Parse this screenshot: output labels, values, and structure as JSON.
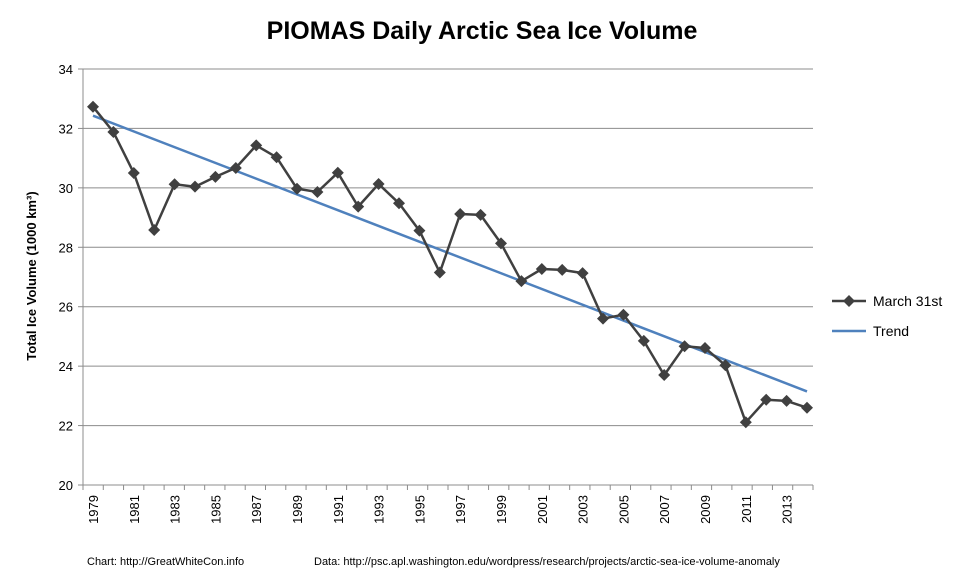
{
  "chart_data": {
    "type": "line",
    "title": "PIOMAS Daily Arctic Sea Ice Volume",
    "ylabel": "Total Ice Volume (1000 km³)",
    "xlabel": "",
    "ylim": [
      20,
      34
    ],
    "y_ticks": [
      "20",
      "22",
      "24",
      "26",
      "28",
      "30",
      "32",
      "34"
    ],
    "x_ticks": [
      "1979",
      "1981",
      "1983",
      "1985",
      "1987",
      "1989",
      "1991",
      "1993",
      "1995",
      "1997",
      "1999",
      "2001",
      "2003",
      "2005",
      "2007",
      "2009",
      "2011",
      "2013"
    ],
    "grid": "horizontal",
    "legend_position": "right",
    "x": [
      1979,
      1980,
      1981,
      1982,
      1983,
      1984,
      1985,
      1986,
      1987,
      1988,
      1989,
      1990,
      1991,
      1992,
      1993,
      1994,
      1995,
      1996,
      1997,
      1998,
      1999,
      2000,
      2001,
      2002,
      2003,
      2004,
      2005,
      2006,
      2007,
      2008,
      2009,
      2010,
      2011,
      2012,
      2013,
      2014
    ],
    "series": [
      {
        "name": "March 31st",
        "color": "#404040",
        "marker": "diamond",
        "values": [
          32.73,
          31.88,
          30.5,
          28.58,
          30.12,
          30.04,
          30.37,
          30.67,
          31.43,
          31.03,
          29.97,
          29.86,
          30.51,
          29.37,
          30.13,
          29.48,
          28.56,
          27.15,
          29.12,
          29.09,
          28.13,
          26.86,
          27.27,
          27.24,
          27.13,
          25.6,
          25.73,
          24.85,
          23.7,
          24.67,
          24.61,
          24.03,
          22.11,
          22.87,
          22.83,
          22.6
        ]
      },
      {
        "name": "Trend",
        "color": "#4f81bd",
        "marker": "none",
        "x": [
          1979,
          2014
        ],
        "values": [
          32.43,
          23.15
        ]
      }
    ]
  },
  "footer": {
    "chart_source": "Chart: http://GreatWhiteCon.info",
    "data_source": "Data:  http://psc.apl.washington.edu/wordpress/research/projects/arctic-sea-ice-volume-anomaly"
  }
}
